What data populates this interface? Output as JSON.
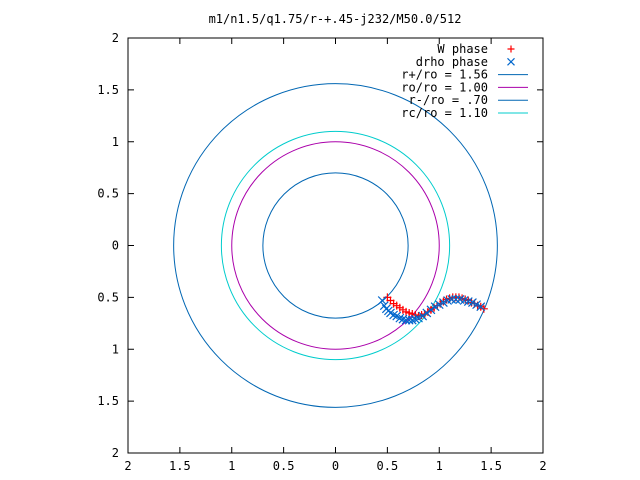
{
  "chart_data": {
    "type": "scatter",
    "title": "m1/n1.5/q1.75/r-+.45-j232/M50.0/512",
    "xlabel": "",
    "ylabel": "",
    "xlim": [
      -2,
      2
    ],
    "ylim": [
      -2,
      2
    ],
    "x_ticks": [
      -2,
      -1.5,
      -1,
      -0.5,
      0,
      0.5,
      1,
      1.5,
      2
    ],
    "y_ticks": [
      -2,
      -1.5,
      -1,
      -0.5,
      0,
      0.5,
      1,
      1.5,
      2
    ],
    "x_tick_labels": [
      "2",
      "1.5",
      "1",
      "0.5",
      "0",
      "0.5",
      "1",
      "1.5",
      "2"
    ],
    "y_tick_labels": [
      "2",
      "1.5",
      "1",
      "0.5",
      "0",
      "0.5",
      "1",
      "1.5",
      "2"
    ],
    "grid": false,
    "legend_position": "top-right",
    "series": [
      {
        "name": "W phase",
        "kind": "points",
        "marker": "plus",
        "color": "#ff0000",
        "x": [
          0.5,
          0.53,
          0.56,
          0.59,
          0.62,
          0.65,
          0.68,
          0.71,
          0.74,
          0.77,
          0.8,
          0.83,
          0.86,
          0.89,
          0.92,
          0.95,
          0.98,
          1.01,
          1.04,
          1.07,
          1.1,
          1.13,
          1.16,
          1.19,
          1.22,
          1.25,
          1.28,
          1.31,
          1.34,
          1.37,
          1.4,
          1.43
        ],
        "y": [
          -0.5,
          -0.53,
          -0.56,
          -0.58,
          -0.6,
          -0.62,
          -0.64,
          -0.65,
          -0.66,
          -0.67,
          -0.68,
          -0.67,
          -0.66,
          -0.64,
          -0.62,
          -0.6,
          -0.58,
          -0.56,
          -0.54,
          -0.52,
          -0.51,
          -0.5,
          -0.5,
          -0.5,
          -0.51,
          -0.52,
          -0.53,
          -0.55,
          -0.56,
          -0.58,
          -0.59,
          -0.61
        ]
      },
      {
        "name": "drho phase",
        "kind": "points",
        "marker": "cross",
        "color": "#0066cc",
        "x": [
          0.45,
          0.47,
          0.49,
          0.51,
          0.53,
          0.56,
          0.59,
          0.62,
          0.65,
          0.68,
          0.71,
          0.74,
          0.77,
          0.8,
          0.84,
          0.88,
          0.92,
          0.96,
          1.0,
          1.04,
          1.08,
          1.12,
          1.16,
          1.2,
          1.24,
          1.28,
          1.32,
          1.36,
          1.4
        ],
        "y": [
          -0.53,
          -0.58,
          -0.61,
          -0.63,
          -0.65,
          -0.67,
          -0.68,
          -0.7,
          -0.71,
          -0.72,
          -0.72,
          -0.72,
          -0.71,
          -0.7,
          -0.68,
          -0.65,
          -0.62,
          -0.59,
          -0.57,
          -0.55,
          -0.53,
          -0.52,
          -0.52,
          -0.52,
          -0.53,
          -0.54,
          -0.55,
          -0.57,
          -0.59
        ]
      },
      {
        "name": "r+/ro = 1.56",
        "kind": "circle",
        "radius": 1.56,
        "color": "#0066b3"
      },
      {
        "name": "ro/ro = 1.00",
        "kind": "circle",
        "radius": 1.0,
        "color": "#aa00aa"
      },
      {
        "name": "r-/ro = .70",
        "kind": "circle",
        "radius": 0.7,
        "color": "#0066b3"
      },
      {
        "name": "rc/ro = 1.10",
        "kind": "circle",
        "radius": 1.1,
        "color": "#00cccc"
      }
    ]
  }
}
